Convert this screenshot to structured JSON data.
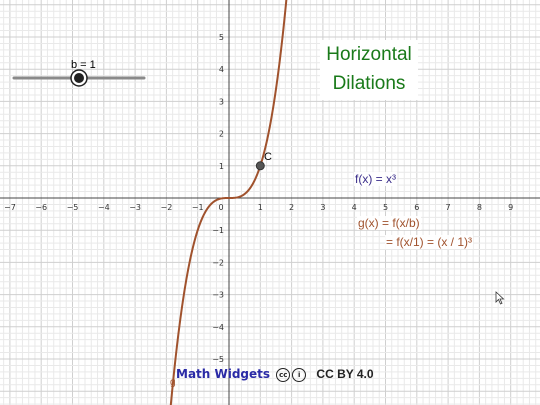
{
  "title": {
    "line1": "Horizontal",
    "line2": "Dilations"
  },
  "functions": {
    "f_label": "f(x) = x³",
    "g_label_line1": "g(x) = f(x/b)",
    "g_label_line2": "= f(x/1) = (x / 1)³"
  },
  "slider": {
    "label": "b = 1",
    "value": 1
  },
  "point": {
    "label": "C",
    "x": 1,
    "y": 1
  },
  "curve_label": "g",
  "axes": {
    "x_ticks": [
      "−7",
      "−6",
      "−5",
      "−4",
      "−3",
      "−2",
      "−1",
      "0",
      "1",
      "2",
      "3",
      "4",
      "5",
      "6",
      "7",
      "8",
      "9"
    ],
    "y_ticks": [
      "5",
      "4",
      "3",
      "2",
      "1",
      "−1",
      "−2",
      "−3",
      "−4",
      "−5"
    ]
  },
  "watermark": {
    "text": "Math Widgets",
    "license": "CC BY 4.0"
  },
  "colors": {
    "curve": "#a0522d",
    "title": "#1a7a1a",
    "f_label": "#3a2d8a",
    "g_label": "#a0522d",
    "grid_minor": "#e9e9e9",
    "grid_major": "#cfcfcf",
    "axis": "#444444"
  }
}
